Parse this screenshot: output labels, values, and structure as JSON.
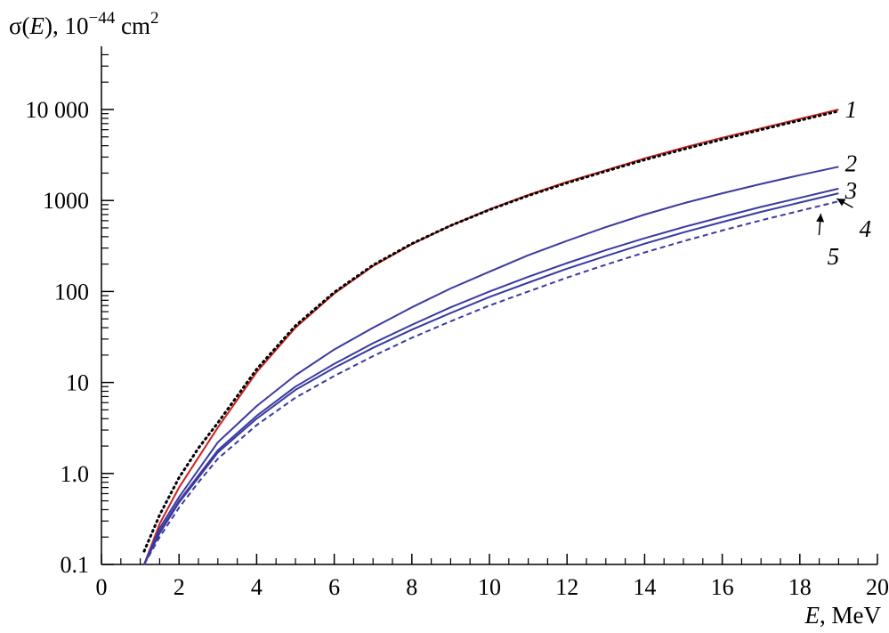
{
  "chart_data": {
    "type": "line",
    "ylabel": {
      "prefix": "σ(",
      "var": "E",
      "mid": "), 10",
      "exp": "−44",
      "unit": " cm",
      "unit_exp": "2"
    },
    "xlabel": {
      "var": "E",
      "rest": ", MeV"
    },
    "xlim": [
      0,
      20
    ],
    "ylim": [
      0.1,
      50000
    ],
    "y_scale": "log",
    "grid": false,
    "x_ticks": [
      0,
      2,
      4,
      6,
      8,
      10,
      12,
      14,
      16,
      18,
      20
    ],
    "x_tick_labels": [
      "0",
      "2",
      "4",
      "6",
      "8",
      "10",
      "12",
      "14",
      "16",
      "18",
      "20"
    ],
    "y_ticks": [
      0.1,
      1,
      10,
      100,
      1000,
      10000
    ],
    "y_tick_labels": [
      "0.1",
      "1.0",
      "10",
      "100",
      "1000",
      "10 000"
    ],
    "series": [
      {
        "label": "1",
        "color": "#cc2222",
        "style": "solid",
        "x": [
          1.1,
          1.5,
          2,
          2.5,
          3,
          4,
          5,
          6,
          7,
          8,
          9,
          10,
          11,
          12,
          13,
          14,
          15,
          16,
          17,
          18,
          19
        ],
        "y": [
          0.1,
          0.28,
          0.7,
          1.5,
          3.2,
          13,
          40,
          95,
          190,
          330,
          530,
          800,
          1150,
          1600,
          2150,
          2900,
          3800,
          4900,
          6200,
          7900,
          10000
        ]
      },
      {
        "label": "",
        "color": "#000000",
        "style": "dotted",
        "x": [
          1.1,
          1.5,
          2,
          2.5,
          3,
          4,
          5,
          6,
          7,
          8,
          9,
          10,
          11,
          12,
          13,
          14,
          15,
          16,
          17,
          18,
          19
        ],
        "y": [
          0.14,
          0.35,
          0.9,
          1.9,
          3.6,
          14,
          42,
          98,
          195,
          335,
          530,
          790,
          1130,
          1560,
          2100,
          2800,
          3650,
          4700,
          6000,
          7600,
          9600
        ]
      },
      {
        "label": "2",
        "color": "#3a3aa0",
        "style": "solid",
        "x": [
          1.1,
          1.5,
          2,
          2.5,
          3,
          4,
          5,
          6,
          7,
          8,
          9,
          10,
          11,
          12,
          13,
          14,
          15,
          16,
          17,
          18,
          19
        ],
        "y": [
          0.1,
          0.25,
          0.55,
          1.1,
          2.2,
          5.5,
          12,
          23,
          40,
          67,
          108,
          165,
          250,
          360,
          510,
          700,
          930,
          1200,
          1520,
          1900,
          2350
        ]
      },
      {
        "label": "3",
        "color": "#3a3aa0",
        "style": "solid",
        "x": [
          1.1,
          1.5,
          2,
          2.5,
          3,
          4,
          5,
          6,
          7,
          8,
          9,
          10,
          11,
          12,
          13,
          14,
          15,
          16,
          17,
          18,
          19
        ],
        "y": [
          0.1,
          0.23,
          0.5,
          0.95,
          1.8,
          4.3,
          9,
          16,
          27,
          43,
          67,
          100,
          145,
          205,
          285,
          385,
          510,
          660,
          850,
          1070,
          1350
        ]
      },
      {
        "label": "4",
        "color": "#3a3aa0",
        "style": "solid",
        "x": [
          1.1,
          1.5,
          2,
          2.5,
          3,
          4,
          5,
          6,
          7,
          8,
          9,
          10,
          11,
          12,
          13,
          14,
          15,
          16,
          17,
          18,
          19
        ],
        "y": [
          0.1,
          0.22,
          0.48,
          0.9,
          1.7,
          4.0,
          8.3,
          14.5,
          24,
          38,
          58,
          87,
          125,
          178,
          245,
          335,
          445,
          580,
          750,
          950,
          1200
        ]
      },
      {
        "label": "5",
        "color": "#3a3aa0",
        "style": "dashed",
        "x": [
          1.1,
          1.5,
          2,
          2.5,
          3,
          4,
          5,
          6,
          7,
          8,
          9,
          10,
          11,
          12,
          13,
          14,
          15,
          16,
          17,
          18,
          19
        ],
        "y": [
          0.1,
          0.2,
          0.42,
          0.8,
          1.45,
          3.4,
          6.8,
          11.8,
          19.5,
          31,
          47,
          70,
          100,
          142,
          197,
          268,
          357,
          468,
          605,
          770,
          980
        ]
      }
    ]
  }
}
